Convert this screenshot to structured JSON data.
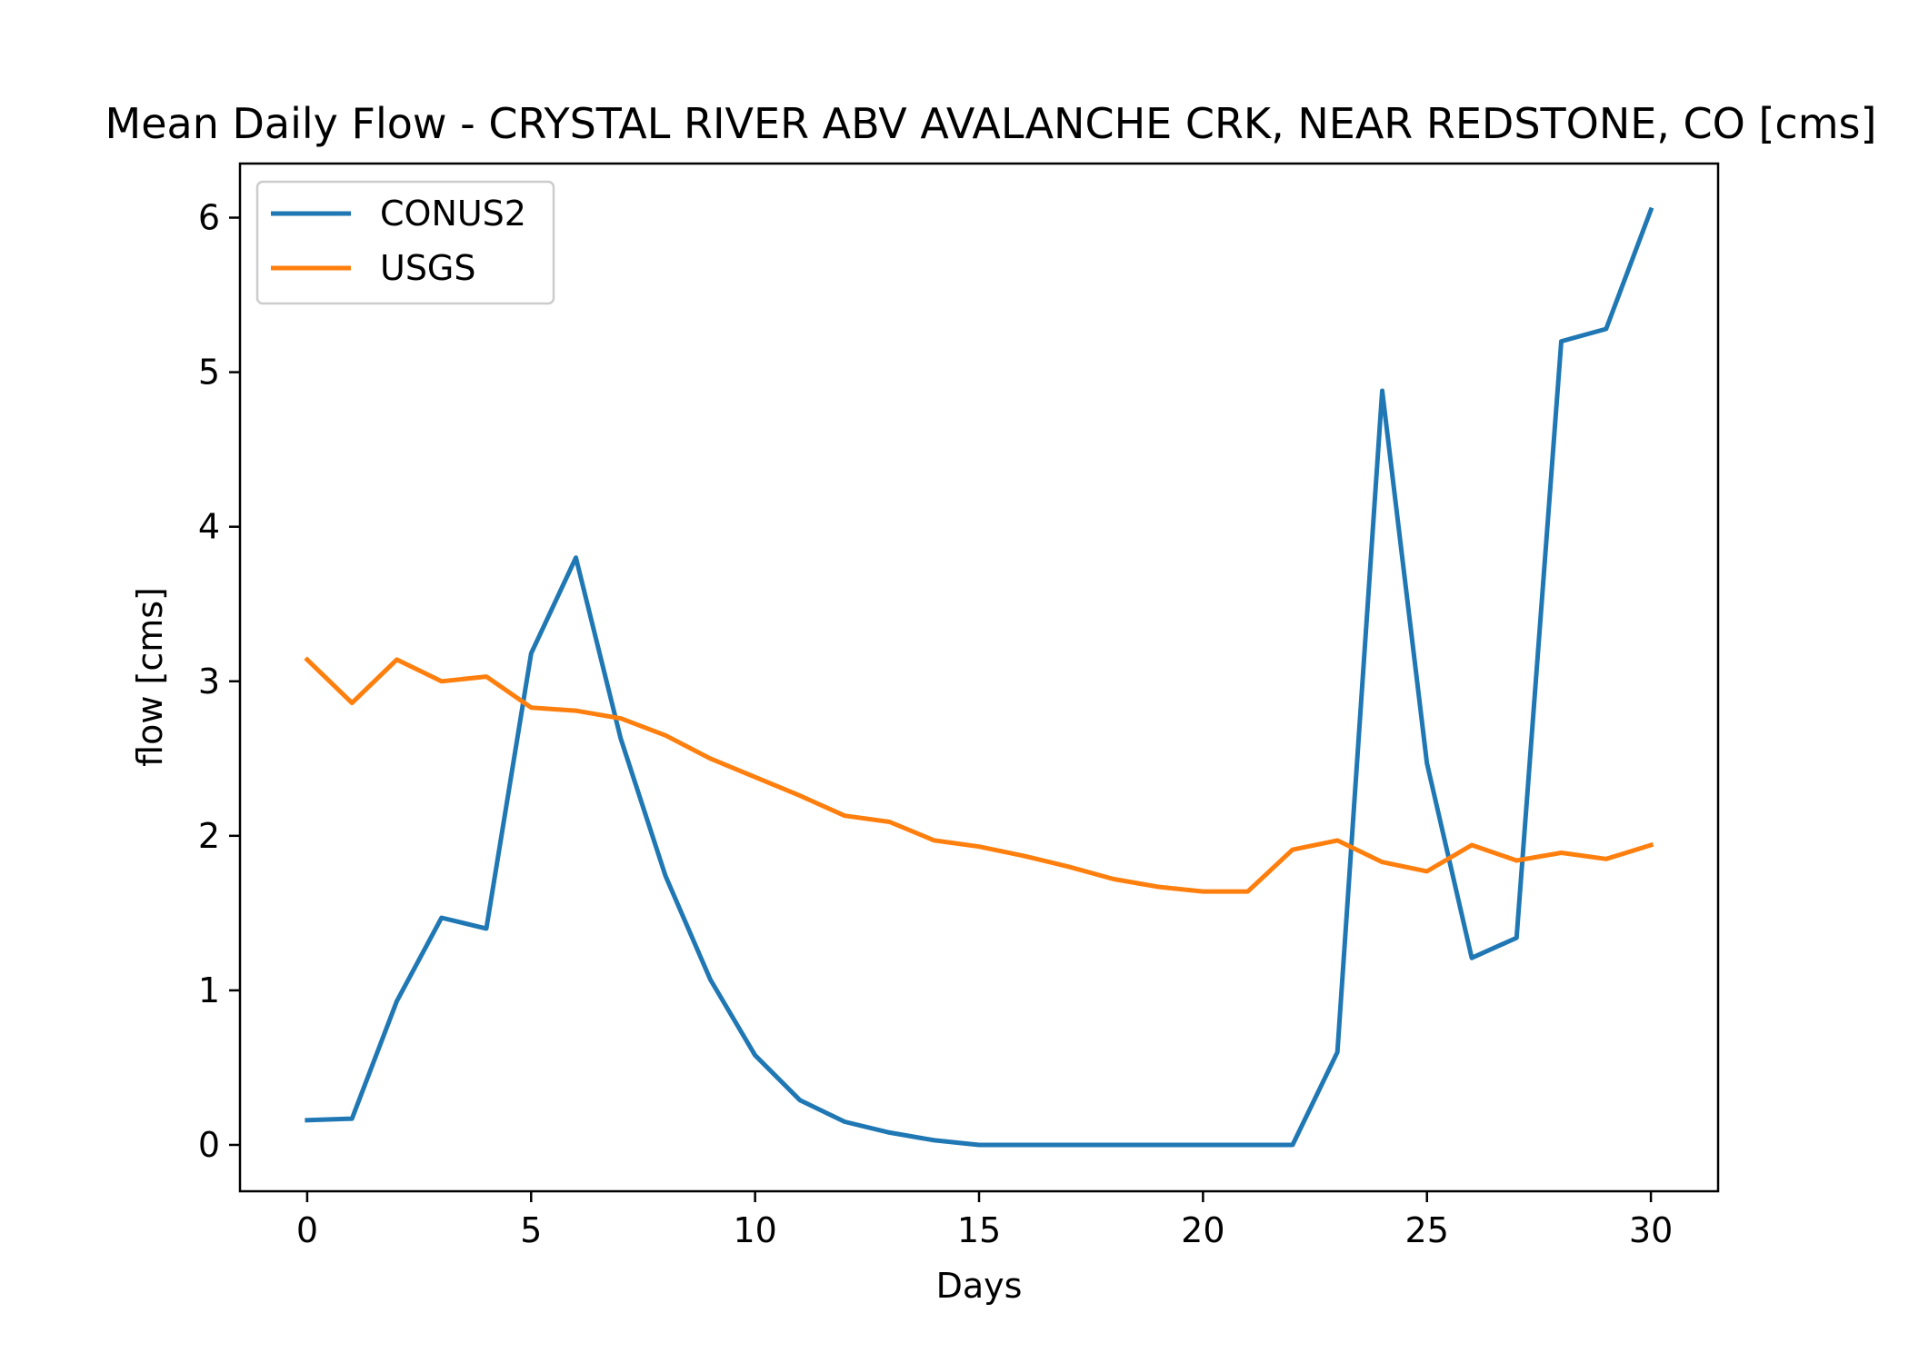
{
  "chart_data": {
    "type": "line",
    "title": "Mean Daily Flow - CRYSTAL RIVER ABV AVALANCHE CRK, NEAR REDSTONE, CO [cms]",
    "xlabel": "Days",
    "ylabel": "flow [cms]",
    "xlim": [
      -1.5,
      31.5
    ],
    "ylim": [
      -0.3,
      6.35
    ],
    "xticks": [
      0,
      5,
      10,
      15,
      20,
      25,
      30
    ],
    "yticks": [
      0,
      1,
      2,
      3,
      4,
      5,
      6
    ],
    "grid": false,
    "legend_position": "upper-left",
    "x": [
      0,
      1,
      2,
      3,
      4,
      5,
      6,
      7,
      8,
      9,
      10,
      11,
      12,
      13,
      14,
      15,
      16,
      17,
      18,
      19,
      20,
      21,
      22,
      23,
      24,
      25,
      26,
      27,
      28,
      29,
      30
    ],
    "series": [
      {
        "name": "CONUS2",
        "color": "#1f77b4",
        "values": [
          0.16,
          0.17,
          0.93,
          1.47,
          1.4,
          3.18,
          3.8,
          2.63,
          1.74,
          1.07,
          0.58,
          0.29,
          0.15,
          0.08,
          0.03,
          0.0,
          0.0,
          0.0,
          0.0,
          0.0,
          0.0,
          0.0,
          0.0,
          0.6,
          4.88,
          2.47,
          1.21,
          1.34,
          5.2,
          5.28,
          6.05
        ]
      },
      {
        "name": "USGS",
        "color": "#ff7f0e",
        "values": [
          3.14,
          2.86,
          3.14,
          3.0,
          3.03,
          2.83,
          2.81,
          2.76,
          2.65,
          2.5,
          2.38,
          2.26,
          2.13,
          2.09,
          1.97,
          1.93,
          1.87,
          1.8,
          1.72,
          1.67,
          1.64,
          1.64,
          1.91,
          1.97,
          1.83,
          1.77,
          1.94,
          1.84,
          1.89,
          1.85,
          1.94
        ]
      }
    ]
  }
}
